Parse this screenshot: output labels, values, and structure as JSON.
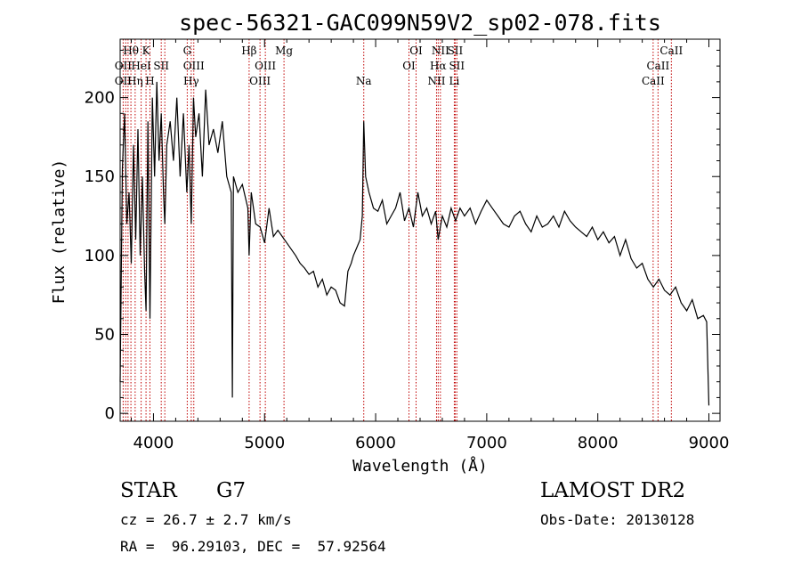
{
  "chart_data": {
    "type": "line",
    "title": "spec-56321-GAC099N59V2_sp02-078.fits",
    "xlabel": "Wavelength (Å)",
    "ylabel": "Flux (relative)",
    "xlim": [
      3700,
      9100
    ],
    "ylim": [
      -5,
      237
    ],
    "xticks": [
      4000,
      5000,
      6000,
      7000,
      8000,
      9000
    ],
    "yticks": [
      0,
      50,
      100,
      150,
      200
    ],
    "colors": {
      "spectrum": "#000000",
      "lines": "#c00000"
    },
    "series": [
      {
        "name": "spectrum",
        "x": [
          3700,
          3720,
          3740,
          3760,
          3780,
          3800,
          3820,
          3840,
          3860,
          3880,
          3900,
          3920,
          3933,
          3950,
          3968,
          3990,
          4010,
          4030,
          4050,
          4070,
          4090,
          4102,
          4120,
          4150,
          4180,
          4210,
          4240,
          4270,
          4300,
          4320,
          4340,
          4360,
          4380,
          4410,
          4440,
          4470,
          4500,
          4540,
          4580,
          4620,
          4660,
          4700,
          4710,
          4720,
          4760,
          4800,
          4850,
          4861,
          4880,
          4920,
          4960,
          5000,
          5040,
          5080,
          5120,
          5160,
          5200,
          5240,
          5280,
          5320,
          5360,
          5400,
          5440,
          5480,
          5520,
          5560,
          5600,
          5640,
          5680,
          5720,
          5750,
          5780,
          5800,
          5830,
          5860,
          5880,
          5893,
          5910,
          5940,
          5980,
          6020,
          6060,
          6100,
          6140,
          6180,
          6220,
          6260,
          6300,
          6340,
          6380,
          6420,
          6460,
          6500,
          6540,
          6563,
          6600,
          6640,
          6680,
          6720,
          6760,
          6800,
          6850,
          6900,
          6950,
          7000,
          7050,
          7100,
          7150,
          7200,
          7250,
          7300,
          7350,
          7400,
          7450,
          7500,
          7550,
          7600,
          7650,
          7700,
          7750,
          7800,
          7850,
          7900,
          7950,
          8000,
          8050,
          8100,
          8150,
          8200,
          8250,
          8300,
          8350,
          8400,
          8450,
          8500,
          8550,
          8600,
          8650,
          8700,
          8750,
          8800,
          8850,
          8900,
          8950,
          8980,
          9000
        ],
        "y": [
          20,
          155,
          190,
          120,
          140,
          95,
          170,
          110,
          180,
          100,
          150,
          90,
          65,
          185,
          60,
          200,
          150,
          210,
          160,
          190,
          140,
          120,
          170,
          185,
          160,
          200,
          150,
          190,
          140,
          170,
          120,
          200,
          175,
          190,
          150,
          205,
          170,
          180,
          165,
          185,
          150,
          140,
          10,
          150,
          140,
          145,
          130,
          100,
          140,
          120,
          118,
          108,
          130,
          112,
          116,
          112,
          108,
          104,
          100,
          95,
          92,
          88,
          90,
          80,
          85,
          75,
          80,
          78,
          70,
          68,
          90,
          95,
          100,
          105,
          110,
          125,
          185,
          150,
          140,
          130,
          128,
          135,
          120,
          125,
          130,
          140,
          122,
          130,
          118,
          140,
          125,
          130,
          120,
          128,
          110,
          125,
          118,
          130,
          122,
          130,
          125,
          130,
          120,
          128,
          135,
          130,
          125,
          120,
          118,
          125,
          128,
          120,
          115,
          125,
          118,
          120,
          125,
          118,
          128,
          122,
          118,
          115,
          112,
          118,
          110,
          115,
          108,
          112,
          100,
          110,
          98,
          92,
          95,
          85,
          80,
          85,
          78,
          75,
          80,
          70,
          65,
          72,
          60,
          62,
          58,
          5
        ]
      }
    ],
    "line_labels": [
      {
        "text": "Hθ",
        "x": 3797,
        "row": 1
      },
      {
        "text": "OII",
        "x": 3727,
        "row": 2
      },
      {
        "text": "OII",
        "x": 3727,
        "row": 3
      },
      {
        "text": "Hη",
        "x": 3835,
        "row": 3
      },
      {
        "text": "K",
        "x": 3933,
        "row": 1
      },
      {
        "text": "HeI",
        "x": 3889,
        "row": 2
      },
      {
        "text": "H",
        "x": 3968,
        "row": 3
      },
      {
        "text": "SII",
        "x": 4070,
        "row": 2
      },
      {
        "text": "G",
        "x": 4304,
        "row": 1
      },
      {
        "text": "OIII",
        "x": 4363,
        "row": 2
      },
      {
        "text": "Hγ",
        "x": 4340,
        "row": 3
      },
      {
        "text": "Hβ",
        "x": 4861,
        "row": 1
      },
      {
        "text": "OIII",
        "x": 5007,
        "row": 2
      },
      {
        "text": "OIII",
        "x": 4959,
        "row": 3
      },
      {
        "text": "Mg",
        "x": 5175,
        "row": 1
      },
      {
        "text": "Na",
        "x": 5893,
        "row": 3
      },
      {
        "text": "OI",
        "x": 6364,
        "row": 1
      },
      {
        "text": "OI",
        "x": 6300,
        "row": 2
      },
      {
        "text": "NII",
        "x": 6583,
        "row": 1
      },
      {
        "text": "SII",
        "x": 6716,
        "row": 1
      },
      {
        "text": "Hα",
        "x": 6563,
        "row": 2
      },
      {
        "text": "SII",
        "x": 6731,
        "row": 2
      },
      {
        "text": "NII",
        "x": 6548,
        "row": 3
      },
      {
        "text": "Li",
        "x": 6708,
        "row": 3
      },
      {
        "text": "CaII",
        "x": 8662,
        "row": 1
      },
      {
        "text": "CaII",
        "x": 8542,
        "row": 2
      },
      {
        "text": "CaII",
        "x": 8498,
        "row": 3
      }
    ],
    "line_positions": [
      3727,
      3750,
      3771,
      3797,
      3835,
      3889,
      3933,
      3968,
      4070,
      4102,
      4304,
      4340,
      4363,
      4861,
      4959,
      5007,
      5175,
      5893,
      6300,
      6364,
      6548,
      6563,
      6583,
      6708,
      6716,
      6731,
      8498,
      8542,
      8662
    ]
  },
  "info": {
    "object_type": "STAR",
    "subclass": "G7",
    "survey": "LAMOST DR2",
    "cz": "cz = 26.7 ± 2.7 km/s",
    "obs_date": "Obs-Date: 20130128",
    "coords": "RA =  96.29103, DEC =  57.92564"
  }
}
